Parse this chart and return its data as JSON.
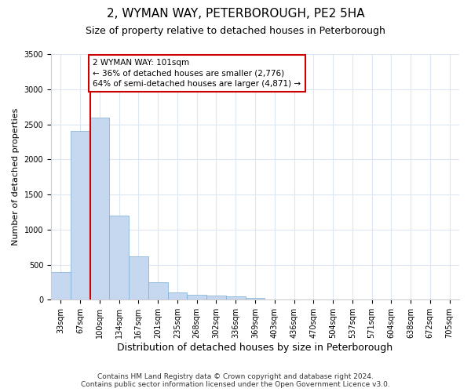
{
  "title": "2, WYMAN WAY, PETERBOROUGH, PE2 5HA",
  "subtitle": "Size of property relative to detached houses in Peterborough",
  "xlabel": "Distribution of detached houses by size in Peterborough",
  "ylabel": "Number of detached properties",
  "categories": [
    "33sqm",
    "67sqm",
    "100sqm",
    "134sqm",
    "167sqm",
    "201sqm",
    "235sqm",
    "268sqm",
    "302sqm",
    "336sqm",
    "369sqm",
    "403sqm",
    "436sqm",
    "470sqm",
    "504sqm",
    "537sqm",
    "571sqm",
    "604sqm",
    "638sqm",
    "672sqm",
    "705sqm"
  ],
  "values": [
    400,
    2400,
    2600,
    1200,
    620,
    250,
    100,
    70,
    60,
    50,
    30,
    0,
    0,
    0,
    0,
    0,
    0,
    0,
    0,
    0,
    0
  ],
  "bar_color": "#c5d8f0",
  "bar_edge_color": "#7badd4",
  "vline_index": 2,
  "vline_color": "#cc0000",
  "annotation_text": "2 WYMAN WAY: 101sqm\n← 36% of detached houses are smaller (2,776)\n64% of semi-detached houses are larger (4,871) →",
  "annotation_box_color": "#ffffff",
  "annotation_box_edge": "#cc0000",
  "ylim": [
    0,
    3500
  ],
  "yticks": [
    0,
    500,
    1000,
    1500,
    2000,
    2500,
    3000,
    3500
  ],
  "bg_color": "#ffffff",
  "grid_color": "#dce6f5",
  "footer": "Contains HM Land Registry data © Crown copyright and database right 2024.\nContains public sector information licensed under the Open Government Licence v3.0.",
  "title_fontsize": 11,
  "subtitle_fontsize": 9,
  "xlabel_fontsize": 9,
  "ylabel_fontsize": 8,
  "tick_fontsize": 7,
  "footer_fontsize": 6.5,
  "annotation_fontsize": 7.5
}
